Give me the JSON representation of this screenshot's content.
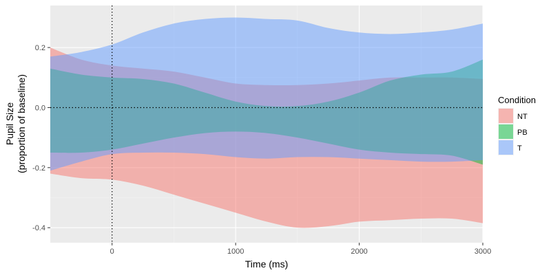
{
  "chart_data": {
    "type": "area",
    "xlabel": "Time (ms)",
    "ylabel": [
      "Pupil Size",
      "(proportion of baseline)"
    ],
    "xlim": [
      -500,
      3000
    ],
    "ylim": [
      -0.45,
      0.34
    ],
    "x_ticks": [
      {
        "value": 0,
        "label": "0"
      },
      {
        "value": 1000,
        "label": "1000"
      },
      {
        "value": 2000,
        "label": "2000"
      },
      {
        "value": 3000,
        "label": "3000"
      }
    ],
    "y_ticks": [
      {
        "value": 0.2,
        "label": "0.2"
      },
      {
        "value": 0.0,
        "label": "0.0"
      },
      {
        "value": -0.2,
        "label": "-0.2"
      },
      {
        "value": -0.4,
        "label": "-0.4"
      }
    ],
    "reference_lines": {
      "vertical_x": 0,
      "horizontal_y": 0.0,
      "style": "dotted"
    },
    "grid": true,
    "background": "#ebebeb",
    "legend": {
      "title": "Condition",
      "position": "right"
    },
    "x": [
      -500,
      -250,
      0,
      250,
      500,
      750,
      1000,
      1250,
      1500,
      1750,
      2000,
      2250,
      2500,
      2750,
      3000
    ],
    "series": [
      {
        "name": "NT",
        "color": "#F8766D",
        "upper": [
          0.2,
          0.16,
          0.14,
          0.13,
          0.12,
          0.1,
          0.08,
          0.075,
          0.075,
          0.08,
          0.09,
          0.1,
          0.1,
          0.1,
          0.095
        ],
        "lower": [
          -0.22,
          -0.235,
          -0.24,
          -0.26,
          -0.29,
          -0.32,
          -0.35,
          -0.38,
          -0.4,
          -0.395,
          -0.38,
          -0.375,
          -0.37,
          -0.37,
          -0.385
        ]
      },
      {
        "name": "PB",
        "color": "#00BA38",
        "upper": [
          0.13,
          0.11,
          0.1,
          0.095,
          0.08,
          0.05,
          0.02,
          0.005,
          0.005,
          0.02,
          0.05,
          0.09,
          0.11,
          0.12,
          0.16
        ],
        "lower": [
          -0.15,
          -0.15,
          -0.14,
          -0.12,
          -0.1,
          -0.085,
          -0.08,
          -0.085,
          -0.1,
          -0.12,
          -0.14,
          -0.15,
          -0.155,
          -0.16,
          -0.19
        ]
      },
      {
        "name": "T",
        "color": "#619CFF",
        "upper": [
          0.17,
          0.185,
          0.21,
          0.25,
          0.28,
          0.295,
          0.3,
          0.295,
          0.29,
          0.265,
          0.25,
          0.245,
          0.25,
          0.26,
          0.28
        ],
        "lower": [
          -0.21,
          -0.18,
          -0.155,
          -0.15,
          -0.15,
          -0.155,
          -0.165,
          -0.17,
          -0.165,
          -0.165,
          -0.17,
          -0.175,
          -0.18,
          -0.18,
          -0.175
        ]
      }
    ]
  }
}
